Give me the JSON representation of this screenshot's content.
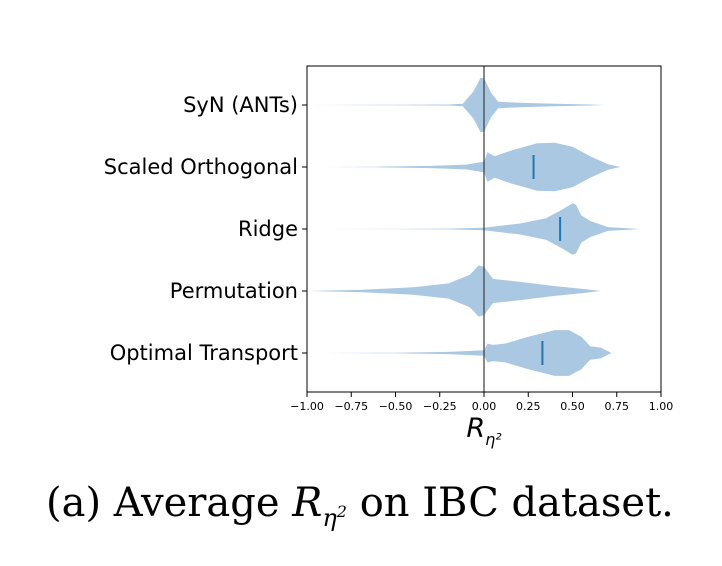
{
  "chart_data": {
    "type": "violin",
    "orientation": "horizontal",
    "categories": [
      "SyN (ANTs)",
      "Scaled Orthogonal",
      "Ridge",
      "Permutation",
      "Optimal Transport"
    ],
    "xlim": [
      -1.0,
      1.0
    ],
    "xticks": [
      "−1.00",
      "−0.75",
      "−0.50",
      "−0.25",
      "0.00",
      "0.25",
      "0.50",
      "0.75",
      "1.00"
    ],
    "xtick_values": [
      -1.0,
      -0.75,
      -0.5,
      -0.25,
      0.0,
      0.25,
      0.5,
      0.75,
      1.0
    ],
    "xlabel": "R",
    "xlabel_sub": "η²",
    "reference_line_x": 0.0,
    "color": "#aac8e2",
    "mean_color": "#1f77b4",
    "violins": [
      {
        "name": "SyN (ANTs)",
        "mean": 0.0,
        "min": -0.98,
        "max": 0.68,
        "profile": [
          [
            -0.98,
            0.0
          ],
          [
            -0.5,
            0.01
          ],
          [
            -0.2,
            0.02
          ],
          [
            -0.12,
            0.05
          ],
          [
            -0.06,
            0.5
          ],
          [
            -0.02,
            1.0
          ],
          [
            0.0,
            1.0
          ],
          [
            0.04,
            0.45
          ],
          [
            0.08,
            0.12
          ],
          [
            0.2,
            0.08
          ],
          [
            0.4,
            0.05
          ],
          [
            0.6,
            0.02
          ],
          [
            0.68,
            0.0
          ]
        ]
      },
      {
        "name": "Scaled Orthogonal",
        "mean": 0.28,
        "min": -0.9,
        "max": 0.77,
        "profile": [
          [
            -0.9,
            0.0
          ],
          [
            -0.6,
            0.01
          ],
          [
            -0.3,
            0.04
          ],
          [
            -0.1,
            0.09
          ],
          [
            0.0,
            0.2
          ],
          [
            0.02,
            0.55
          ],
          [
            0.06,
            0.4
          ],
          [
            0.15,
            0.6
          ],
          [
            0.3,
            0.88
          ],
          [
            0.4,
            0.9
          ],
          [
            0.5,
            0.75
          ],
          [
            0.6,
            0.4
          ],
          [
            0.7,
            0.1
          ],
          [
            0.77,
            0.0
          ]
        ]
      },
      {
        "name": "Ridge",
        "mean": 0.43,
        "min": -0.9,
        "max": 0.88,
        "profile": [
          [
            -0.9,
            0.0
          ],
          [
            -0.5,
            0.005
          ],
          [
            -0.2,
            0.015
          ],
          [
            0.0,
            0.05
          ],
          [
            0.2,
            0.2
          ],
          [
            0.35,
            0.4
          ],
          [
            0.45,
            0.75
          ],
          [
            0.5,
            0.95
          ],
          [
            0.52,
            0.9
          ],
          [
            0.55,
            0.5
          ],
          [
            0.6,
            0.3
          ],
          [
            0.7,
            0.07
          ],
          [
            0.88,
            0.0
          ]
        ]
      },
      {
        "name": "Permutation",
        "mean": 0.0,
        "min": -1.0,
        "max": 0.66,
        "profile": [
          [
            -1.0,
            0.0
          ],
          [
            -0.7,
            0.04
          ],
          [
            -0.4,
            0.14
          ],
          [
            -0.2,
            0.28
          ],
          [
            -0.08,
            0.6
          ],
          [
            -0.03,
            0.95
          ],
          [
            0.0,
            0.9
          ],
          [
            0.05,
            0.45
          ],
          [
            0.2,
            0.34
          ],
          [
            0.4,
            0.18
          ],
          [
            0.55,
            0.08
          ],
          [
            0.66,
            0.0
          ]
        ]
      },
      {
        "name": "Optimal Transport",
        "mean": 0.33,
        "min": -0.9,
        "max": 0.72,
        "profile": [
          [
            -0.9,
            0.0
          ],
          [
            -0.5,
            0.01
          ],
          [
            -0.2,
            0.04
          ],
          [
            0.0,
            0.1
          ],
          [
            0.02,
            0.35
          ],
          [
            0.05,
            0.3
          ],
          [
            0.12,
            0.35
          ],
          [
            0.25,
            0.6
          ],
          [
            0.4,
            0.85
          ],
          [
            0.48,
            0.85
          ],
          [
            0.55,
            0.6
          ],
          [
            0.6,
            0.25
          ],
          [
            0.66,
            0.2
          ],
          [
            0.72,
            0.0
          ]
        ]
      }
    ]
  },
  "caption": {
    "prefix": "(a) Average ",
    "symbol": "R",
    "symbol_sub": "η",
    "symbol_sup": "2",
    "suffix": " on IBC dataset."
  }
}
